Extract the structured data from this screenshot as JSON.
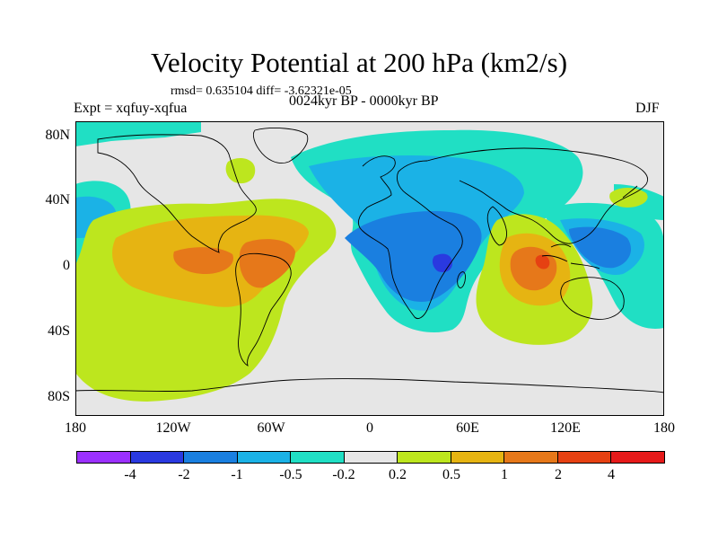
{
  "title": "Velocity Potential at 200 hPa (km2/s)",
  "stats": "rmsd= 0.635104 diff= -3.62321e-05",
  "experiment": "Expt = xqfuy-xqfua",
  "period": "0024kyr BP - 0000kyr BP",
  "season": "DJF",
  "lat_labels": [
    "80N",
    "40N",
    "0",
    "40S",
    "80S"
  ],
  "lon_labels": [
    "180",
    "120W",
    "60W",
    "0",
    "60E",
    "120E",
    "180"
  ],
  "colorbar": {
    "labels": [
      "-4",
      "-2",
      "-1",
      "-0.5",
      "-0.2",
      "0.2",
      "0.5",
      "1",
      "2",
      "4"
    ],
    "colors": [
      "#9b30ff",
      "#2a39e0",
      "#1a7fe0",
      "#1bb2e6",
      "#20dfc4",
      "#e6e6e6",
      "#bde61e",
      "#e6b412",
      "#e6781a",
      "#e64112",
      "#e61a1a"
    ]
  },
  "map_colors": {
    "background": "#e6e6e6",
    "neg_weak": "#20dfc4",
    "neg_mid": "#1bb2e6",
    "neg_strong": "#1a7fe0",
    "neg_core": "#2a39e0",
    "neg_peak": "#9b30ff",
    "pos_weak": "#bde61e",
    "pos_mid": "#e6b412",
    "pos_strong": "#e6781a",
    "pos_core": "#e64112",
    "coast": "#000000"
  }
}
